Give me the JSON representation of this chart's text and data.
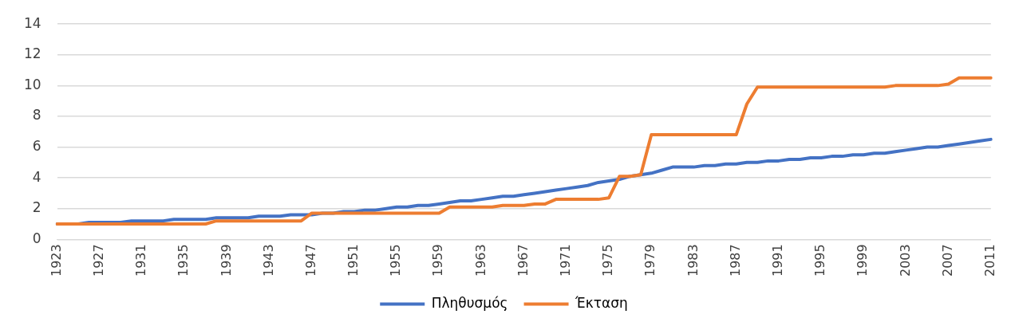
{
  "chart_data": {
    "type": "line",
    "categories": [
      "1923",
      null,
      null,
      null,
      "1927",
      null,
      null,
      null,
      "1931",
      null,
      null,
      null,
      "1935",
      null,
      null,
      null,
      "1939",
      null,
      null,
      null,
      "1943",
      null,
      null,
      null,
      "1947",
      null,
      null,
      null,
      "1951",
      null,
      null,
      null,
      "1955",
      null,
      null,
      null,
      "1959",
      null,
      null,
      null,
      "1963",
      null,
      null,
      null,
      "1967",
      null,
      null,
      null,
      "1971",
      null,
      null,
      null,
      "1975",
      null,
      null,
      null,
      "1979",
      null,
      null,
      null,
      "1983",
      null,
      null,
      null,
      "1987",
      null,
      null,
      null,
      "1991",
      null,
      null,
      null,
      "1995",
      null,
      null,
      null,
      "1999",
      null,
      null,
      null,
      "2003",
      null,
      null,
      null,
      "2007",
      null,
      null,
      null,
      "2011"
    ],
    "series": [
      {
        "name": "Πληθυσμός",
        "color": "#4472c4",
        "values": [
          1.0,
          1.0,
          1.0,
          1.1,
          1.1,
          1.1,
          1.1,
          1.2,
          1.2,
          1.2,
          1.2,
          1.3,
          1.3,
          1.3,
          1.3,
          1.4,
          1.4,
          1.4,
          1.4,
          1.5,
          1.5,
          1.5,
          1.6,
          1.6,
          1.6,
          1.7,
          1.7,
          1.8,
          1.8,
          1.9,
          1.9,
          2.0,
          2.1,
          2.1,
          2.2,
          2.2,
          2.3,
          2.4,
          2.5,
          2.5,
          2.6,
          2.7,
          2.8,
          2.8,
          2.9,
          3.0,
          3.1,
          3.2,
          3.3,
          3.4,
          3.5,
          3.7,
          3.8,
          3.9,
          4.1,
          4.2,
          4.3,
          4.5,
          4.7,
          4.7,
          4.7,
          4.8,
          4.8,
          4.9,
          4.9,
          5.0,
          5.0,
          5.1,
          5.1,
          5.2,
          5.2,
          5.3,
          5.3,
          5.4,
          5.4,
          5.5,
          5.5,
          5.6,
          5.6,
          5.7,
          5.8,
          5.9,
          6.0,
          6.0,
          6.1,
          6.2,
          6.3,
          6.4,
          6.5
        ]
      },
      {
        "name": "Έκταση",
        "color": "#ed7d31",
        "values": [
          1.0,
          1.0,
          1.0,
          1.0,
          1.0,
          1.0,
          1.0,
          1.0,
          1.0,
          1.0,
          1.0,
          1.0,
          1.0,
          1.0,
          1.0,
          1.2,
          1.2,
          1.2,
          1.2,
          1.2,
          1.2,
          1.2,
          1.2,
          1.2,
          1.7,
          1.7,
          1.7,
          1.7,
          1.7,
          1.7,
          1.7,
          1.7,
          1.7,
          1.7,
          1.7,
          1.7,
          1.7,
          2.1,
          2.1,
          2.1,
          2.1,
          2.1,
          2.2,
          2.2,
          2.2,
          2.3,
          2.3,
          2.6,
          2.6,
          2.6,
          2.6,
          2.6,
          2.7,
          4.1,
          4.1,
          4.2,
          6.8,
          6.8,
          6.8,
          6.8,
          6.8,
          6.8,
          6.8,
          6.8,
          6.8,
          8.8,
          9.9,
          9.9,
          9.9,
          9.9,
          9.9,
          9.9,
          9.9,
          9.9,
          9.9,
          9.9,
          9.9,
          9.9,
          9.9,
          10.0,
          10.0,
          10.0,
          10.0,
          10.0,
          10.1,
          10.5,
          10.5,
          10.5,
          10.5
        ]
      }
    ],
    "ylim": [
      0,
      14
    ],
    "yticks": [
      0,
      2,
      4,
      6,
      8,
      10,
      12,
      14
    ],
    "grid": "y",
    "legend": "bottom",
    "marker": "none",
    "line_style": "solid"
  }
}
